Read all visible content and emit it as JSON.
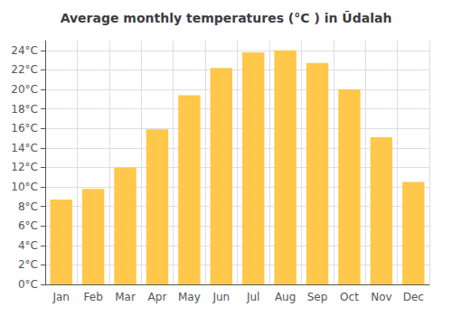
{
  "chart_data": {
    "type": "bar",
    "title": "Average monthly temperatures (°C ) in Ūdalah",
    "categories": [
      "Jan",
      "Feb",
      "Mar",
      "Apr",
      "May",
      "Jun",
      "Jul",
      "Aug",
      "Sep",
      "Oct",
      "Nov",
      "Dec"
    ],
    "values": [
      8.7,
      9.8,
      12.0,
      15.9,
      19.4,
      22.2,
      23.8,
      24.0,
      22.7,
      20.0,
      15.1,
      10.5
    ],
    "color": "#FFC84A",
    "ylim": [
      0,
      25
    ],
    "yticks": [
      {
        "value": 0,
        "label": "0°C"
      },
      {
        "value": 2,
        "label": "2°C"
      },
      {
        "value": 4,
        "label": "4°C"
      },
      {
        "value": 6,
        "label": "6°C"
      },
      {
        "value": 8,
        "label": "8°C"
      },
      {
        "value": 10,
        "label": "10°C"
      },
      {
        "value": 12,
        "label": "12°C"
      },
      {
        "value": 14,
        "label": "14°C"
      },
      {
        "value": 16,
        "label": "16°C"
      },
      {
        "value": 18,
        "label": "18°C"
      },
      {
        "value": 20,
        "label": "20°C"
      },
      {
        "value": 22,
        "label": "22°C"
      },
      {
        "value": 24,
        "label": "24°C"
      }
    ],
    "grid": true
  }
}
